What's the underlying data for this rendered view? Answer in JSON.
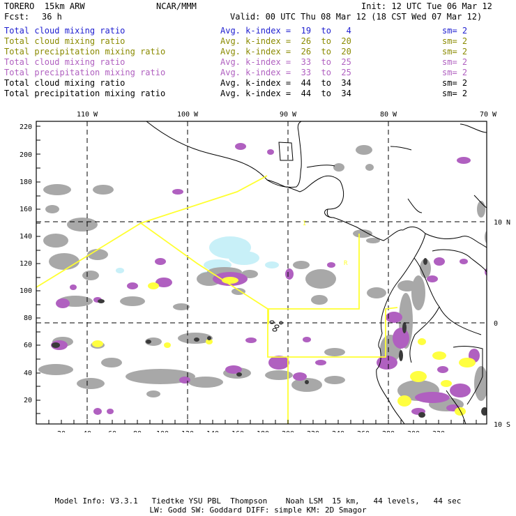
{
  "header": {
    "model": "TORERO  15km ARW",
    "org": "NCAR/MMM",
    "init": "Init: 12 UTC Tue 06 Mar 12",
    "fcst_label": "Fcst:",
    "fcst_value": "36 h",
    "valid": "Valid: 00 UTC Thu 08 Mar 12 (18 CST Wed 07 Mar 12)"
  },
  "legend": [
    {
      "label": "Total cloud mixing ratio",
      "stat": "Avg. k-index =  19  to   4",
      "sm": "sm= 2",
      "color": "#2020d0"
    },
    {
      "label": "Total cloud mixing ratio",
      "stat": "Avg. k-index =  26  to  20",
      "sm": "sm= 2",
      "color": "#8a8a00"
    },
    {
      "label": "Total precipitation mixing ratio",
      "stat": "Avg. k-index =  26  to  20",
      "sm": "sm= 2",
      "color": "#8a8a00"
    },
    {
      "label": "Total cloud mixing ratio",
      "stat": "Avg. k-index =  33  to  25",
      "sm": "sm= 2",
      "color": "#b060c0"
    },
    {
      "label": "Total precipitation mixing ratio",
      "stat": "Avg. k-index =  33  to  25",
      "sm": "sm= 2",
      "color": "#b060c0"
    },
    {
      "label": "Total cloud mixing ratio",
      "stat": "Avg. k-index =  44  to  34",
      "sm": "sm= 2",
      "color": "#000000"
    },
    {
      "label": "Total precipitation mixing ratio",
      "stat": "Avg. k-index =  44  to  34",
      "sm": "sm= 2",
      "color": "#000000"
    }
  ],
  "map": {
    "lon_labels": [
      "110 W",
      "100 W",
      "90 W",
      "80 W",
      "70 W"
    ],
    "lat_labels": [
      "10 N",
      "0",
      "10 S"
    ],
    "y_ticks": [
      "220",
      "200",
      "180",
      "160",
      "140",
      "120",
      "100",
      "80",
      "60",
      "40",
      "20"
    ],
    "x_ticks": [
      "20",
      "40",
      "60",
      "80",
      "100",
      "120",
      "140",
      "160",
      "180",
      "200",
      "220",
      "240",
      "260",
      "280",
      "300",
      "320"
    ],
    "colors": {
      "gray": "#a8a8a8",
      "purple": "#b060c0",
      "yellow": "#ffff40",
      "cyan": "#c8f0f8",
      "dark": "#404040",
      "outline": "#ffff30"
    }
  },
  "footer": {
    "line1": "Model Info: V3.3.1   Tiedtke YSU PBL  Thompson    Noah LSM  15 km,   44 levels,   44 sec",
    "line2": "LW: Godd SW: Goddard DIFF: simple KM: 2D Smagor"
  }
}
